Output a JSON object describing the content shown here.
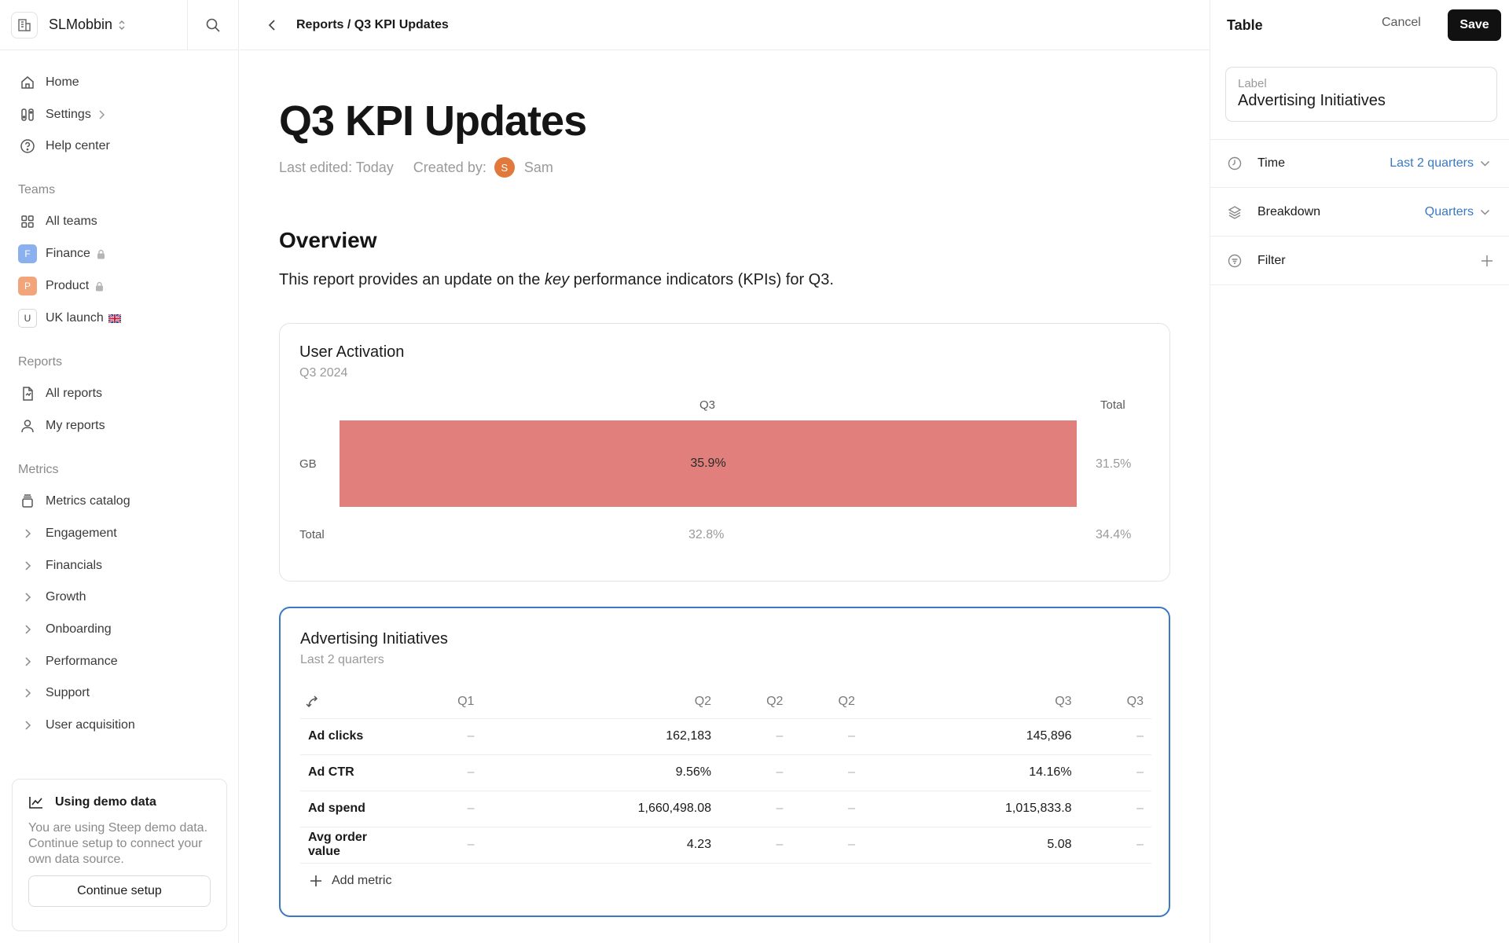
{
  "workspace": {
    "name": "SLMobbin"
  },
  "nav": {
    "main": [
      {
        "label": "Home",
        "icon": "home-icon"
      },
      {
        "label": "Settings",
        "icon": "settings-icon"
      },
      {
        "label": "Help center",
        "icon": "help-icon"
      }
    ],
    "teams_heading": "Teams",
    "teams": [
      {
        "label": "All teams",
        "icon": "grid-icon"
      },
      {
        "label": "Finance",
        "badge": "F",
        "badge_color": "#8ab0ee",
        "locked": true
      },
      {
        "label": "Product",
        "badge": "P",
        "badge_color": "#f2a57a",
        "locked": true
      },
      {
        "label": "UK launch",
        "badge": "U",
        "badge_color": "#ffffff",
        "flag": "uk-flag-icon"
      }
    ],
    "reports_heading": "Reports",
    "reports": [
      {
        "label": "All reports",
        "icon": "reports-icon"
      },
      {
        "label": "My reports",
        "icon": "user-icon"
      }
    ],
    "metrics_heading": "Metrics",
    "metrics_catalog": "Metrics catalog",
    "metric_groups": [
      "Engagement",
      "Financials",
      "Growth",
      "Onboarding",
      "Performance",
      "Support",
      "User acquisition"
    ]
  },
  "demo": {
    "title": "Using demo data",
    "text": "You are using Steep demo data. Continue setup to connect your own data source.",
    "button": "Continue setup"
  },
  "breadcrumb": "Reports / Q3 KPI Updates",
  "report": {
    "title": "Q3 KPI Updates",
    "last_edited": "Last edited: Today",
    "created_by": "Created by:",
    "author_initial": "S",
    "author": "Sam",
    "overview_heading": "Overview",
    "overview_pre": "This report provides an update on the ",
    "overview_em": "key",
    "overview_post": " performance indicators (KPIs) for Q3."
  },
  "activation": {
    "title": "User Activation",
    "subtitle": "Q3 2024",
    "col_q3": "Q3",
    "col_total": "Total",
    "row_gb": "GB",
    "row_total": "Total",
    "gb_q3": "35.9%",
    "gb_total": "31.5%",
    "total_q3": "32.8%",
    "total_total": "34.4%"
  },
  "advertising": {
    "title": "Advertising Initiatives",
    "subtitle": "Last 2 quarters",
    "columns": [
      "Q1",
      "Q2",
      "Q2",
      "Q2",
      "Q3",
      "Q3"
    ],
    "rows": [
      {
        "name": "Ad clicks",
        "values": [
          "–",
          "162,183",
          "–",
          "–",
          "145,896",
          "–"
        ]
      },
      {
        "name": "Ad CTR",
        "values": [
          "–",
          "9.56%",
          "–",
          "–",
          "14.16%",
          "–"
        ]
      },
      {
        "name": "Ad spend",
        "values": [
          "–",
          "1,660,498.08",
          "–",
          "–",
          "1,015,833.8",
          "–"
        ]
      },
      {
        "name": "Avg order value",
        "values": [
          "–",
          "4.23",
          "–",
          "–",
          "5.08",
          "–"
        ]
      }
    ],
    "add_metric": "Add metric"
  },
  "panel": {
    "title": "Table",
    "cancel": "Cancel",
    "save": "Save",
    "label_caption": "Label",
    "label_value": "Advertising Initiatives",
    "time_label": "Time",
    "time_value": "Last 2 quarters",
    "breakdown_label": "Breakdown",
    "breakdown_value": "Quarters",
    "filter_label": "Filter"
  },
  "colors": {
    "accent": "#3a78c4",
    "heat": "#e07f7b",
    "save_bg": "#111111"
  }
}
